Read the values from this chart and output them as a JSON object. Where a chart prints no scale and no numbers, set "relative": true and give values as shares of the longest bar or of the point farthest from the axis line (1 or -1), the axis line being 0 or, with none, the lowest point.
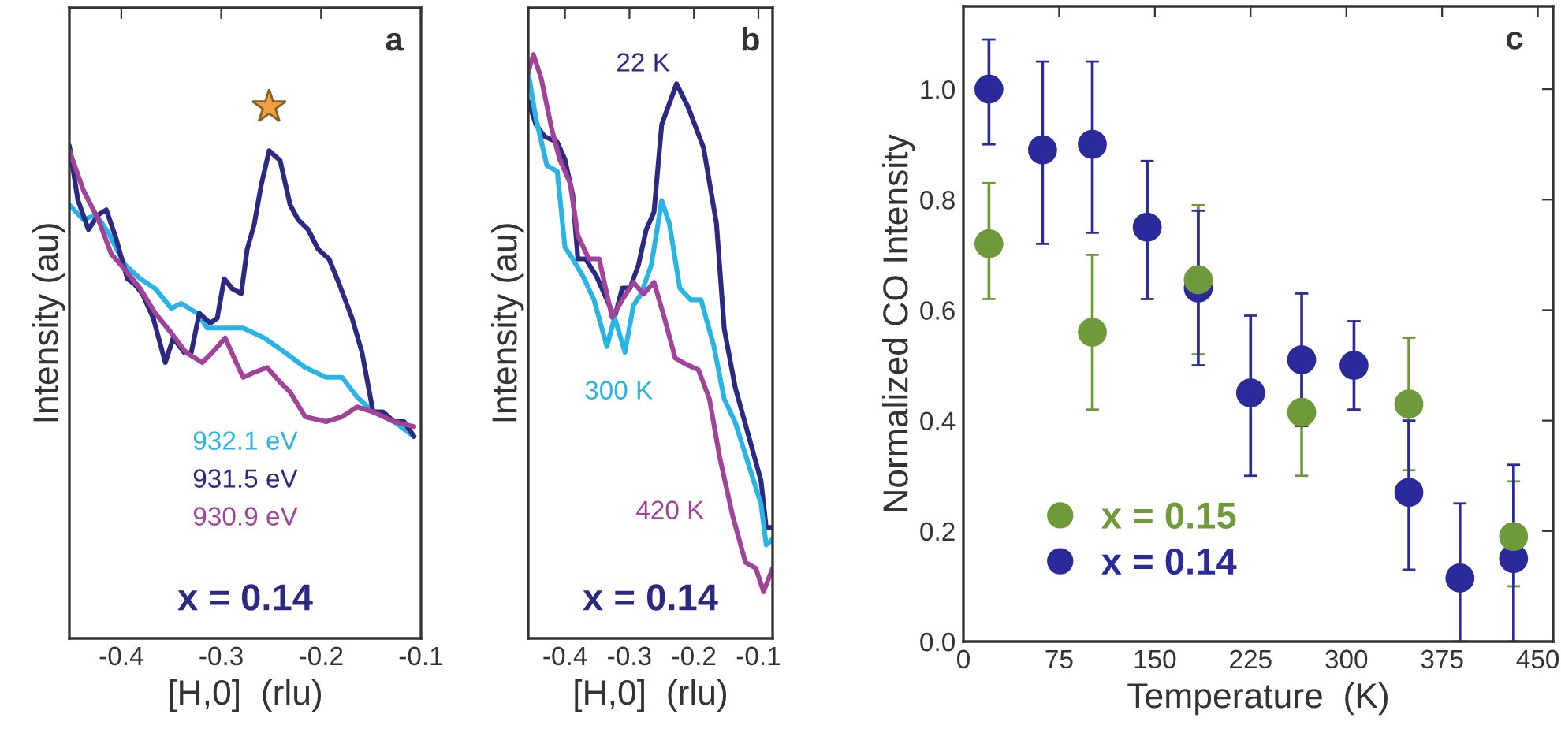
{
  "chart_data": [
    {
      "type": "line",
      "relative": true,
      "xlabel": "[H,0]  (rlu)",
      "ylabel": "Intensity (au)",
      "xlim": [
        -0.452,
        -0.1
      ],
      "xticks": [
        {
          "value": -0.4,
          "label": "-0.4"
        },
        {
          "value": -0.3,
          "label": "-0.3"
        },
        {
          "value": -0.2,
          "label": "-0.2"
        },
        {
          "value": -0.1,
          "label": "-0.1"
        }
      ],
      "annotations": [
        "a",
        "x = 0.14"
      ],
      "tick_labels": "x",
      "series": [
        {
          "name": "932.1 eV",
          "color": "#2ab4e6",
          "x": [
            -0.452,
            -0.438,
            -0.425,
            -0.412,
            -0.397,
            -0.381,
            -0.366,
            -0.35,
            -0.34,
            -0.324,
            -0.314,
            -0.298,
            -0.278,
            -0.257,
            -0.236,
            -0.216,
            -0.195,
            -0.179,
            -0.164,
            -0.148,
            -0.127,
            -0.107
          ],
          "values": [
            0.88,
            0.85,
            0.86,
            0.82,
            0.76,
            0.73,
            0.71,
            0.67,
            0.68,
            0.66,
            0.63,
            0.63,
            0.63,
            0.61,
            0.58,
            0.55,
            0.53,
            0.53,
            0.49,
            0.46,
            0.44,
            0.41
          ]
        },
        {
          "name": "931.5 eV",
          "color": "#2c2a80",
          "x": [
            -0.452,
            -0.4435,
            -0.433,
            -0.423,
            -0.415,
            -0.405,
            -0.394,
            -0.387,
            -0.379,
            -0.368,
            -0.356,
            -0.348,
            -0.337,
            -0.33,
            -0.322,
            -0.311,
            -0.304,
            -0.297,
            -0.289,
            -0.28,
            -0.274,
            -0.267,
            -0.26,
            -0.252,
            -0.241,
            -0.231,
            -0.223,
            -0.213,
            -0.203,
            -0.192,
            -0.182,
            -0.169,
            -0.159,
            -0.148,
            -0.138,
            -0.127,
            -0.117,
            -0.107
          ],
          "values": [
            1.0,
            0.89,
            0.83,
            0.86,
            0.87,
            0.81,
            0.73,
            0.72,
            0.7,
            0.65,
            0.56,
            0.61,
            0.58,
            0.58,
            0.66,
            0.64,
            0.65,
            0.73,
            0.71,
            0.7,
            0.79,
            0.84,
            0.92,
            0.99,
            0.97,
            0.88,
            0.85,
            0.83,
            0.79,
            0.77,
            0.72,
            0.65,
            0.58,
            0.46,
            0.46,
            0.44,
            0.44,
            0.41
          ]
        },
        {
          "name": "930.9 eV",
          "color": "#a0449a",
          "x": [
            -0.452,
            -0.438,
            -0.423,
            -0.41,
            -0.397,
            -0.381,
            -0.366,
            -0.35,
            -0.335,
            -0.319,
            -0.309,
            -0.296,
            -0.285,
            -0.278,
            -0.267,
            -0.254,
            -0.241,
            -0.231,
            -0.216,
            -0.195,
            -0.179,
            -0.164,
            -0.148,
            -0.127,
            -0.107
          ],
          "values": [
            0.99,
            0.91,
            0.85,
            0.78,
            0.75,
            0.71,
            0.66,
            0.62,
            0.58,
            0.56,
            0.58,
            0.61,
            0.56,
            0.53,
            0.54,
            0.55,
            0.52,
            0.5,
            0.45,
            0.44,
            0.45,
            0.47,
            0.46,
            0.44,
            0.43
          ]
        }
      ]
    },
    {
      "type": "line",
      "relative": true,
      "xlabel": "[H,0]  (rlu)",
      "ylabel": "Intensity (au)",
      "xlim": [
        -0.457,
        -0.078
      ],
      "xticks": [
        {
          "value": -0.4,
          "label": "-0.4"
        },
        {
          "value": -0.3,
          "label": "-0.3"
        },
        {
          "value": -0.2,
          "label": "-0.2"
        },
        {
          "value": -0.1,
          "label": "-0.1"
        }
      ],
      "annotations": [
        "b",
        "x = 0.14"
      ],
      "tick_labels": "x",
      "series": [
        {
          "name": "22 K",
          "color": "#2c2a80",
          "x": [
            -0.457,
            -0.445,
            -0.432,
            -0.412,
            -0.4,
            -0.388,
            -0.38,
            -0.368,
            -0.351,
            -0.335,
            -0.323,
            -0.311,
            -0.299,
            -0.286,
            -0.274,
            -0.262,
            -0.25,
            -0.227,
            -0.209,
            -0.185,
            -0.165,
            -0.153,
            -0.136,
            -0.116,
            -0.096,
            -0.088,
            -0.078
          ],
          "values": [
            0.92,
            0.88,
            0.86,
            0.85,
            0.82,
            0.76,
            0.65,
            0.65,
            0.62,
            0.58,
            0.55,
            0.6,
            0.6,
            0.64,
            0.7,
            0.73,
            0.88,
            0.95,
            0.91,
            0.84,
            0.71,
            0.53,
            0.43,
            0.35,
            0.27,
            0.19,
            0.19
          ]
        },
        {
          "name": "300 K",
          "color": "#2ab4e6",
          "x": [
            -0.457,
            -0.445,
            -0.428,
            -0.412,
            -0.4,
            -0.388,
            -0.372,
            -0.355,
            -0.335,
            -0.323,
            -0.307,
            -0.294,
            -0.282,
            -0.266,
            -0.25,
            -0.238,
            -0.222,
            -0.205,
            -0.189,
            -0.169,
            -0.153,
            -0.136,
            -0.116,
            -0.096,
            -0.088,
            -0.078
          ],
          "values": [
            0.97,
            0.89,
            0.81,
            0.8,
            0.67,
            0.65,
            0.62,
            0.58,
            0.5,
            0.55,
            0.49,
            0.57,
            0.59,
            0.64,
            0.75,
            0.71,
            0.6,
            0.58,
            0.58,
            0.5,
            0.41,
            0.37,
            0.3,
            0.23,
            0.16,
            0.17
          ]
        },
        {
          "name": "420 K",
          "color": "#a0449a",
          "x": [
            -0.457,
            -0.449,
            -0.437,
            -0.42,
            -0.408,
            -0.392,
            -0.38,
            -0.363,
            -0.347,
            -0.327,
            -0.311,
            -0.294,
            -0.278,
            -0.262,
            -0.246,
            -0.229,
            -0.213,
            -0.193,
            -0.176,
            -0.16,
            -0.14,
            -0.12,
            -0.104,
            -0.092,
            -0.078
          ],
          "values": [
            0.97,
            1.0,
            0.96,
            0.87,
            0.82,
            0.78,
            0.69,
            0.65,
            0.65,
            0.55,
            0.58,
            0.61,
            0.59,
            0.61,
            0.55,
            0.48,
            0.47,
            0.46,
            0.41,
            0.31,
            0.21,
            0.13,
            0.12,
            0.08,
            0.12
          ]
        }
      ]
    },
    {
      "type": "scatter",
      "xlabel": "Temperature  (K)",
      "ylabel": "Normalized CO Intensity",
      "xlim": [
        0,
        462
      ],
      "ylim": [
        0,
        1.15
      ],
      "xticks": [
        0,
        75,
        150,
        225,
        300,
        375,
        450
      ],
      "yticks": [
        {
          "value": 0,
          "label": "0.0"
        },
        {
          "value": 0.2,
          "label": "0.2"
        },
        {
          "value": 0.4,
          "label": "0.4"
        },
        {
          "value": 0.6,
          "label": "0.6"
        },
        {
          "value": 0.8,
          "label": "0.8"
        },
        {
          "value": 1.0,
          "label": "1.0"
        }
      ],
      "annotations": [
        "c"
      ],
      "legend": "bottom left",
      "marker": "circle",
      "series": [
        {
          "name": "x = 0.15",
          "color": "#6e9a3a",
          "x": [
            20,
            101,
            184,
            265,
            349,
            431
          ],
          "values": [
            0.72,
            0.56,
            0.655,
            0.415,
            0.43,
            0.19
          ],
          "errors": [
            [
              0.62,
              0.83
            ],
            [
              0.42,
              0.7
            ],
            [
              0.52,
              0.79
            ],
            [
              0.3,
              0.53
            ],
            [
              0.31,
              0.55
            ],
            [
              0.1,
              0.29
            ]
          ]
        },
        {
          "name": "x = 0.14",
          "color": "#2a2a9a",
          "x": [
            20,
            62,
            101,
            144,
            184,
            225,
            265,
            306,
            349,
            389,
            431
          ],
          "values": [
            1.0,
            0.89,
            0.9,
            0.75,
            0.64,
            0.45,
            0.51,
            0.5,
            0.27,
            0.115,
            0.15
          ],
          "errors": [
            [
              0.9,
              1.09
            ],
            [
              0.72,
              1.05
            ],
            [
              0.74,
              1.05
            ],
            [
              0.62,
              0.87
            ],
            [
              0.5,
              0.78
            ],
            [
              0.3,
              0.59
            ],
            [
              0.39,
              0.63
            ],
            [
              0.42,
              0.58
            ],
            [
              0.13,
              0.4
            ],
            [
              0,
              0.25
            ],
            [
              0,
              0.32
            ]
          ]
        }
      ]
    }
  ]
}
